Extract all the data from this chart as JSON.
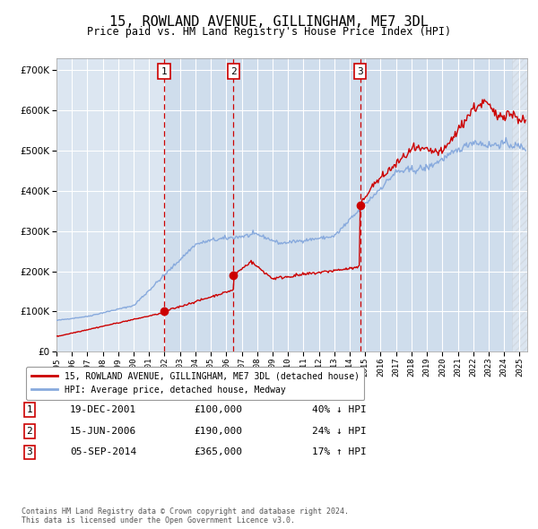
{
  "title": "15, ROWLAND AVENUE, GILLINGHAM, ME7 3DL",
  "subtitle": "Price paid vs. HM Land Registry's House Price Index (HPI)",
  "title_fontsize": 11,
  "subtitle_fontsize": 9,
  "ytick_values": [
    0,
    100000,
    200000,
    300000,
    400000,
    500000,
    600000,
    700000
  ],
  "ylim": [
    0,
    730000
  ],
  "xlim_start": 1995.0,
  "xlim_end": 2025.5,
  "background_color": "#ffffff",
  "plot_bg_color": "#dce6f1",
  "grid_color": "#ffffff",
  "sale_color": "#cc0000",
  "hpi_color": "#88aadd",
  "vline_color": "#cc0000",
  "sale_points": [
    {
      "date_num": 2001.96,
      "price": 100000,
      "label": "1"
    },
    {
      "date_num": 2006.46,
      "price": 190000,
      "label": "2"
    },
    {
      "date_num": 2014.67,
      "price": 365000,
      "label": "3"
    }
  ],
  "vline_shades": [
    {
      "x_start": 2001.96,
      "x_end": 2006.46
    },
    {
      "x_start": 2006.46,
      "x_end": 2014.67
    },
    {
      "x_start": 2014.67,
      "x_end": 2025.5
    }
  ],
  "legend_sale_label": "15, ROWLAND AVENUE, GILLINGHAM, ME7 3DL (detached house)",
  "legend_hpi_label": "HPI: Average price, detached house, Medway",
  "table_rows": [
    {
      "num": "1",
      "date": "19-DEC-2001",
      "price": "£100,000",
      "hpi": "40% ↓ HPI"
    },
    {
      "num": "2",
      "date": "15-JUN-2006",
      "price": "£190,000",
      "hpi": "24% ↓ HPI"
    },
    {
      "num": "3",
      "date": "05-SEP-2014",
      "price": "£365,000",
      "hpi": "17% ↑ HPI"
    }
  ],
  "footnote": "Contains HM Land Registry data © Crown copyright and database right 2024.\nThis data is licensed under the Open Government Licence v3.0.",
  "hatch_start": 2024.5
}
